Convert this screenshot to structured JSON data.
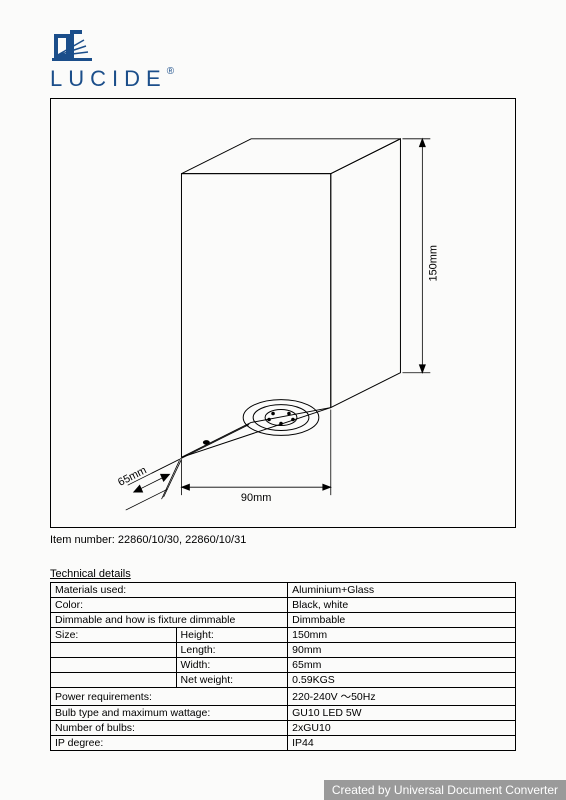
{
  "brand": {
    "name": "LUCIDE",
    "color": "#1b4e8a",
    "reg": "®"
  },
  "drawing": {
    "dim_height": "150mm",
    "dim_length": "90mm",
    "dim_width": "65mm",
    "line_color": "#000000",
    "text_fontsize": 11
  },
  "item_number_label": "Item number:",
  "item_number_value": "22860/10/30, 22860/10/31",
  "tech_header": "Technical details",
  "specs": {
    "rows": [
      {
        "c1": "Materials used:",
        "c2": "",
        "c3": "Aluminium+Glass",
        "merge12": true
      },
      {
        "c1": "Color:",
        "c2": "",
        "c3": "Black, white",
        "merge12": true
      },
      {
        "c1": "Dimmable and how is fixture dimmable",
        "c2": "",
        "c3": "Dimmbable",
        "merge12": true
      },
      {
        "c1": "Size:",
        "c2": "Height:",
        "c3": "150mm"
      },
      {
        "c1": "",
        "c2": "Length:",
        "c3": "90mm"
      },
      {
        "c1": "",
        "c2": "Width:",
        "c3": "65mm"
      },
      {
        "c1": "",
        "c2": "Net weight:",
        "c3": "0.59KGS"
      },
      {
        "c1": "Power requirements:",
        "c2": "",
        "c3": "220-240V ～50Hz",
        "merge12": true
      },
      {
        "c1": "Bulb type and maximum wattage:",
        "c2": "",
        "c3": "GU10 LED 5W",
        "merge12": true
      },
      {
        "c1": "Number of bulbs:",
        "c2": "",
        "c3": "2xGU10",
        "merge12": true
      },
      {
        "c1": "IP degree:",
        "c2": "",
        "c3": "IP44",
        "merge12": true
      }
    ]
  },
  "watermark": "Created by Universal Document Converter"
}
